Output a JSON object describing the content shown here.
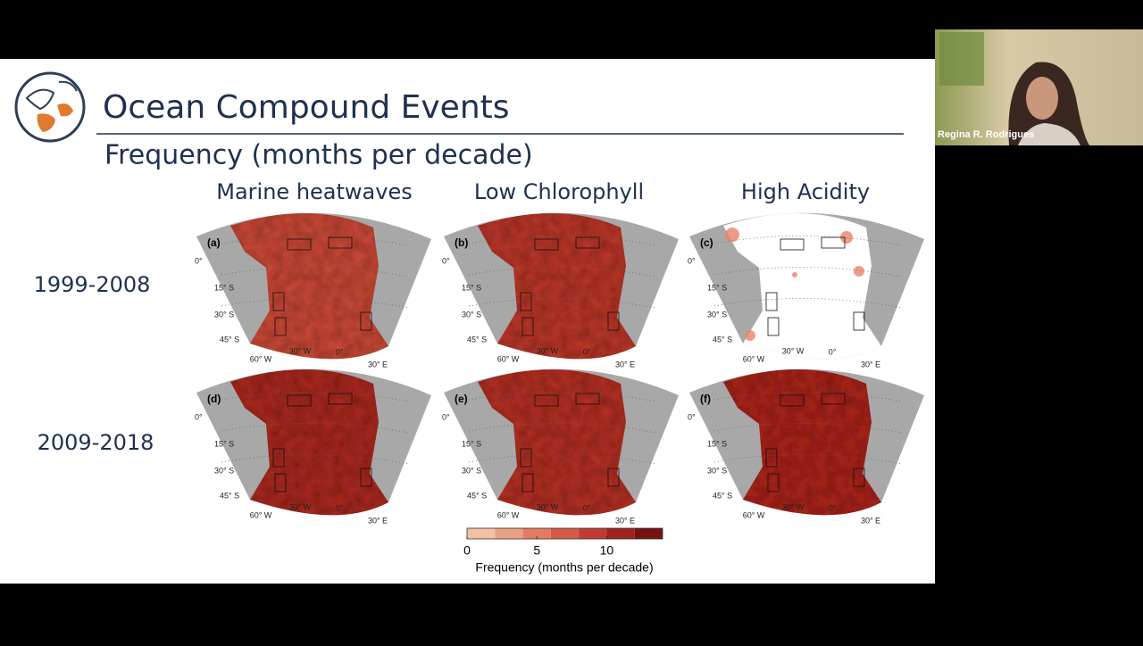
{
  "slide": {
    "title": "Ocean Compound Events",
    "subtitle": "Frequency (months per decade)",
    "columns": [
      "Marine heatwaves",
      "Low Chlorophyll",
      "High Acidity"
    ],
    "rows": [
      "1999-2008",
      "2009-2018"
    ],
    "panels": [
      "(a)",
      "(b)",
      "(c)",
      "(d)",
      "(e)",
      "(f)"
    ],
    "map_labels": {
      "lat": [
        "0°",
        "15° S",
        "30° S",
        "45° S"
      ],
      "lon": [
        "60° W",
        "30° W",
        "0°",
        "30° E"
      ]
    },
    "colorbar": {
      "label": "Frequency (months per decade)",
      "lim": [
        0,
        14
      ],
      "ticks": [
        0,
        5,
        10
      ],
      "bins": [
        0,
        2,
        4,
        6,
        8,
        10,
        12,
        14
      ],
      "colors": [
        "#f3c0a2",
        "#eb9f82",
        "#e27c63",
        "#d45a47",
        "#bf3b30",
        "#9f221d",
        "#761311"
      ]
    }
  },
  "participant": {
    "name": "Regina R. Rodrigues"
  }
}
